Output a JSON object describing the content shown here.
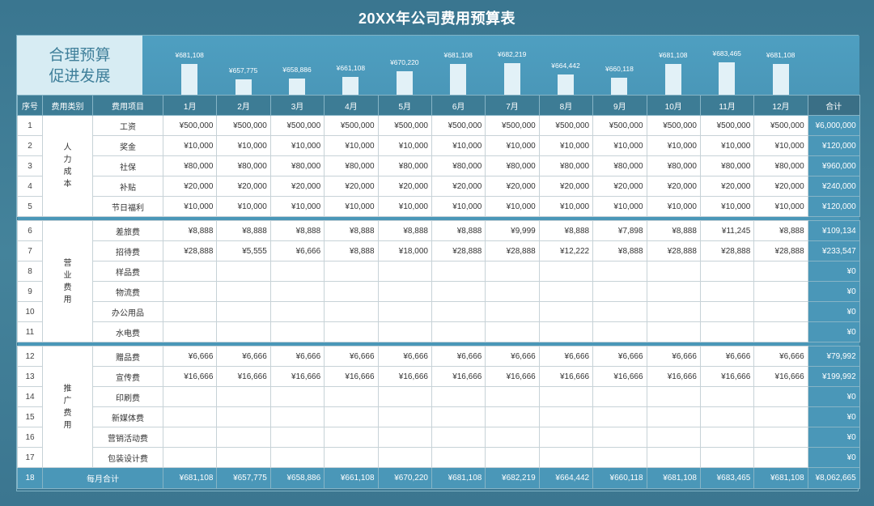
{
  "title": "20XX年公司费用预算表",
  "slogan": {
    "line1": "合理预算",
    "line2": "促进发展"
  },
  "headers": {
    "idx": "序号",
    "category": "费用类别",
    "item": "费用项目",
    "total": "合计"
  },
  "months": [
    "1月",
    "2月",
    "3月",
    "4月",
    "5月",
    "6月",
    "7月",
    "8月",
    "9月",
    "10月",
    "11月",
    "12月"
  ],
  "chart_data": {
    "type": "bar",
    "categories": [
      "1月",
      "2月",
      "3月",
      "4月",
      "5月",
      "6月",
      "7月",
      "8月",
      "9月",
      "10月",
      "11月",
      "12月"
    ],
    "values": [
      681108,
      657775,
      658886,
      661108,
      670220,
      681108,
      682219,
      664442,
      660118,
      681108,
      683465,
      681108
    ],
    "labels": [
      "¥681,108",
      "¥657,775",
      "¥658,886",
      "¥661,108",
      "¥670,220",
      "¥681,108",
      "¥682,219",
      "¥664,442",
      "¥660,118",
      "¥681,108",
      "¥683,465",
      "¥681,108"
    ],
    "ylim": [
      650000,
      690000
    ],
    "color": "#e2f1f7"
  },
  "groups": [
    {
      "category": [
        "人",
        "力",
        "成",
        "本"
      ],
      "rows": [
        {
          "idx": "1",
          "item": "工资",
          "values": [
            "¥500,000",
            "¥500,000",
            "¥500,000",
            "¥500,000",
            "¥500,000",
            "¥500,000",
            "¥500,000",
            "¥500,000",
            "¥500,000",
            "¥500,000",
            "¥500,000",
            "¥500,000"
          ],
          "total": "¥6,000,000"
        },
        {
          "idx": "2",
          "item": "奖金",
          "values": [
            "¥10,000",
            "¥10,000",
            "¥10,000",
            "¥10,000",
            "¥10,000",
            "¥10,000",
            "¥10,000",
            "¥10,000",
            "¥10,000",
            "¥10,000",
            "¥10,000",
            "¥10,000"
          ],
          "total": "¥120,000"
        },
        {
          "idx": "3",
          "item": "社保",
          "values": [
            "¥80,000",
            "¥80,000",
            "¥80,000",
            "¥80,000",
            "¥80,000",
            "¥80,000",
            "¥80,000",
            "¥80,000",
            "¥80,000",
            "¥80,000",
            "¥80,000",
            "¥80,000"
          ],
          "total": "¥960,000"
        },
        {
          "idx": "4",
          "item": "补贴",
          "values": [
            "¥20,000",
            "¥20,000",
            "¥20,000",
            "¥20,000",
            "¥20,000",
            "¥20,000",
            "¥20,000",
            "¥20,000",
            "¥20,000",
            "¥20,000",
            "¥20,000",
            "¥20,000"
          ],
          "total": "¥240,000"
        },
        {
          "idx": "5",
          "item": "节日福利",
          "values": [
            "¥10,000",
            "¥10,000",
            "¥10,000",
            "¥10,000",
            "¥10,000",
            "¥10,000",
            "¥10,000",
            "¥10,000",
            "¥10,000",
            "¥10,000",
            "¥10,000",
            "¥10,000"
          ],
          "total": "¥120,000"
        }
      ]
    },
    {
      "category": [
        "营",
        "业",
        "费",
        "用"
      ],
      "rows": [
        {
          "idx": "6",
          "item": "差旅费",
          "values": [
            "¥8,888",
            "¥8,888",
            "¥8,888",
            "¥8,888",
            "¥8,888",
            "¥8,888",
            "¥9,999",
            "¥8,888",
            "¥7,898",
            "¥8,888",
            "¥11,245",
            "¥8,888"
          ],
          "total": "¥109,134"
        },
        {
          "idx": "7",
          "item": "招待费",
          "values": [
            "¥28,888",
            "¥5,555",
            "¥6,666",
            "¥8,888",
            "¥18,000",
            "¥28,888",
            "¥28,888",
            "¥12,222",
            "¥8,888",
            "¥28,888",
            "¥28,888",
            "¥28,888"
          ],
          "total": "¥233,547"
        },
        {
          "idx": "8",
          "item": "样品费",
          "values": [
            "",
            "",
            "",
            "",
            "",
            "",
            "",
            "",
            "",
            "",
            "",
            ""
          ],
          "total": "¥0"
        },
        {
          "idx": "9",
          "item": "物流费",
          "values": [
            "",
            "",
            "",
            "",
            "",
            "",
            "",
            "",
            "",
            "",
            "",
            ""
          ],
          "total": "¥0"
        },
        {
          "idx": "10",
          "item": "办公用品",
          "values": [
            "",
            "",
            "",
            "",
            "",
            "",
            "",
            "",
            "",
            "",
            "",
            ""
          ],
          "total": "¥0"
        },
        {
          "idx": "11",
          "item": "水电费",
          "values": [
            "",
            "",
            "",
            "",
            "",
            "",
            "",
            "",
            "",
            "",
            "",
            ""
          ],
          "total": "¥0"
        }
      ]
    },
    {
      "category": [
        "推",
        "广",
        "费",
        "用"
      ],
      "rows": [
        {
          "idx": "12",
          "item": "赠品费",
          "values": [
            "¥6,666",
            "¥6,666",
            "¥6,666",
            "¥6,666",
            "¥6,666",
            "¥6,666",
            "¥6,666",
            "¥6,666",
            "¥6,666",
            "¥6,666",
            "¥6,666",
            "¥6,666"
          ],
          "total": "¥79,992"
        },
        {
          "idx": "13",
          "item": "宣传费",
          "values": [
            "¥16,666",
            "¥16,666",
            "¥16,666",
            "¥16,666",
            "¥16,666",
            "¥16,666",
            "¥16,666",
            "¥16,666",
            "¥16,666",
            "¥16,666",
            "¥16,666",
            "¥16,666"
          ],
          "total": "¥199,992"
        },
        {
          "idx": "14",
          "item": "印刷费",
          "values": [
            "",
            "",
            "",
            "",
            "",
            "",
            "",
            "",
            "",
            "",
            "",
            ""
          ],
          "total": "¥0"
        },
        {
          "idx": "15",
          "item": "新媒体费",
          "values": [
            "",
            "",
            "",
            "",
            "",
            "",
            "",
            "",
            "",
            "",
            "",
            ""
          ],
          "total": "¥0"
        },
        {
          "idx": "16",
          "item": "营销活动费",
          "values": [
            "",
            "",
            "",
            "",
            "",
            "",
            "",
            "",
            "",
            "",
            "",
            ""
          ],
          "total": "¥0"
        },
        {
          "idx": "17",
          "item": "包装设计费",
          "values": [
            "",
            "",
            "",
            "",
            "",
            "",
            "",
            "",
            "",
            "",
            "",
            ""
          ],
          "total": "¥0"
        }
      ]
    }
  ],
  "footer": {
    "idx": "18",
    "label": "每月合计",
    "values": [
      "¥681,108",
      "¥657,775",
      "¥658,886",
      "¥661,108",
      "¥670,220",
      "¥681,108",
      "¥682,219",
      "¥664,442",
      "¥660,118",
      "¥681,108",
      "¥683,465",
      "¥681,108"
    ],
    "total": "¥8,062,665"
  }
}
